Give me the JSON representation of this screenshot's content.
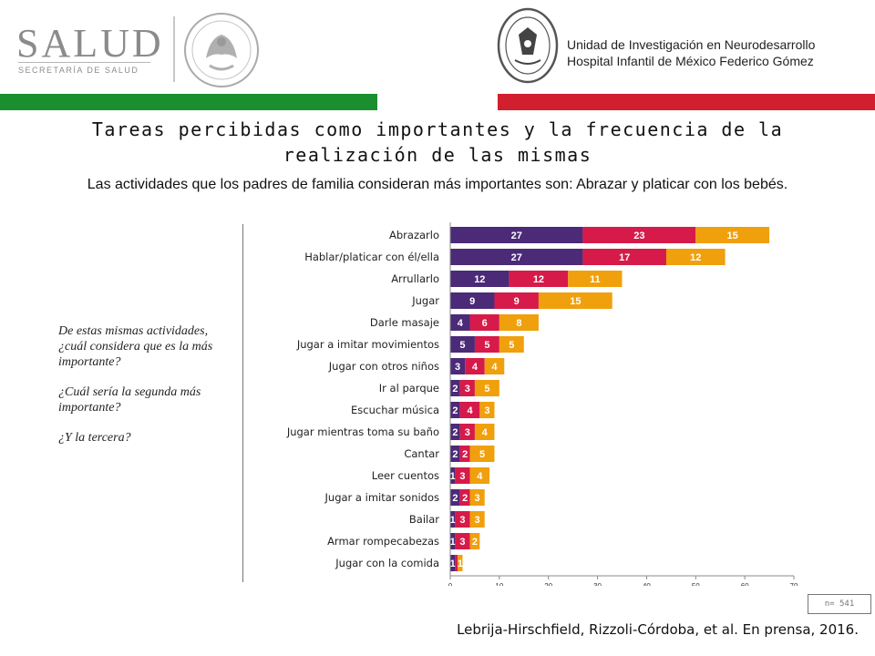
{
  "header": {
    "salud_logo": "SALUD",
    "salud_subtitle": "SECRETARÍA DE SALUD",
    "unit_line1": "Unidad de Investigación en Neurodesarrollo",
    "unit_line2": "Hospital Infantil de México Federico Gómez",
    "accent_green": "#1a8f2f",
    "accent_red": "#d11f2e"
  },
  "title": "Tareas percibidas como importantes y la frecuencia de la realización de las mismas",
  "subtitle": "Las actividades que los padres de familia consideran más importantes son: Abrazar y platicar con los bebés.",
  "questions": [
    "De estas mismas actividades, ¿cuál considera que es la más importante?",
    "¿Cuál sería la segunda más importante?",
    "¿Y la tercera?"
  ],
  "n_label": "n= 541",
  "citation": "Lebrija-Hirschfield, Rizzoli-Córdoba, et al. En prensa, 2016.",
  "chart_data": {
    "type": "bar",
    "orientation": "horizontal",
    "stacked": true,
    "categories": [
      "Abrazarlo",
      "Hablar/platicar con él/ella",
      "Arrullarlo",
      "Jugar",
      "Darle masaje",
      "Jugar a imitar movimientos",
      "Jugar con otros niños",
      "Ir al parque",
      "Escuchar música",
      "Jugar mientras toma su baño",
      "Cantar",
      "Leer cuentos",
      "Jugar a imitar sonidos",
      "Bailar",
      "Armar rompecabezas",
      "Jugar con la comida"
    ],
    "series": [
      {
        "values": [
          27,
          27,
          12,
          9,
          4,
          5,
          3,
          2,
          2,
          2,
          2,
          1,
          2,
          1,
          1,
          1
        ],
        "color": "#4b2a78"
      },
      {
        "values": [
          23,
          17,
          12,
          9,
          6,
          5,
          4,
          3,
          4,
          3,
          2,
          3,
          2,
          3,
          3,
          0.5
        ],
        "color": "#d61a4a"
      },
      {
        "values": [
          15,
          12,
          11,
          15,
          8,
          5,
          4,
          5,
          3,
          4,
          5,
          4,
          3,
          3,
          2,
          1
        ],
        "color": "#f0a00c"
      }
    ],
    "data_labels": [
      [
        "27",
        "23",
        "15"
      ],
      [
        "27",
        "17",
        "12"
      ],
      [
        "12",
        "12",
        "11"
      ],
      [
        "9",
        "9",
        "15"
      ],
      [
        "4",
        "6",
        "8"
      ],
      [
        "5",
        "5",
        "5"
      ],
      [
        "3",
        "4",
        "4"
      ],
      [
        "2",
        "3",
        "5"
      ],
      [
        "2",
        "4",
        "3"
      ],
      [
        "2",
        "3",
        "4"
      ],
      [
        "2",
        "2",
        "5"
      ],
      [
        "1",
        "3",
        "4"
      ],
      [
        "2",
        "2",
        "3"
      ],
      [
        "1",
        "3",
        "3"
      ],
      [
        "1",
        "3",
        "2"
      ],
      [
        "1",
        "",
        "1"
      ]
    ],
    "x_ticks": [
      "0",
      "10",
      "20",
      "30",
      "40",
      "50",
      "60",
      "70"
    ],
    "xlim": [
      0,
      70
    ],
    "grid": false
  }
}
